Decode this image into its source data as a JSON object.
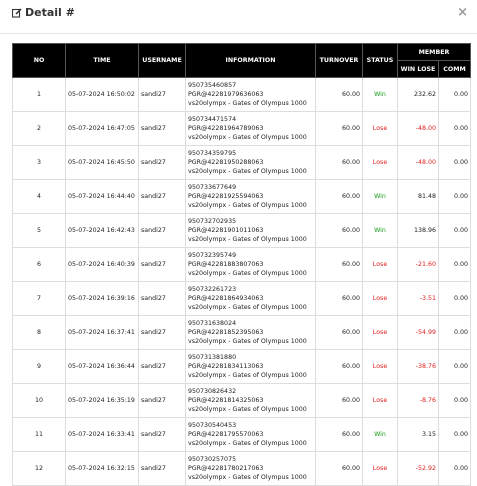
{
  "header": {
    "title": "Detail #",
    "close": "×"
  },
  "table": {
    "columns": [
      "NO",
      "TIME",
      "USERNAME",
      "INFORMATION",
      "TURNOVER",
      "STATUS"
    ],
    "group": "MEMBER",
    "subcolumns": [
      "WIN LOSE",
      "COMM"
    ],
    "rows": [
      {
        "no": "1",
        "time": "05-07-2024 16:50:02",
        "username": "sandi27",
        "information": [
          "950735460857",
          "PGR@42281979636063",
          "vs20olympx - Gates of Olympus 1000"
        ],
        "turnover": "60.00",
        "status": "Win",
        "win_lose": "232.62",
        "comm": "0.00"
      },
      {
        "no": "2",
        "time": "05-07-2024 16:47:05",
        "username": "sandi27",
        "information": [
          "950734471574",
          "PGR@42281964789063",
          "vs20olympx - Gates of Olympus 1000"
        ],
        "turnover": "60.00",
        "status": "Lose",
        "win_lose": "-48.00",
        "comm": "0.00"
      },
      {
        "no": "3",
        "time": "05-07-2024 16:45:50",
        "username": "sandi27",
        "information": [
          "950734359795",
          "PGR@42281950288063",
          "vs20olympx - Gates of Olympus 1000"
        ],
        "turnover": "60.00",
        "status": "Lose",
        "win_lose": "-48.00",
        "comm": "0.00"
      },
      {
        "no": "4",
        "time": "05-07-2024 16:44:40",
        "username": "sandi27",
        "information": [
          "950733677649",
          "PGR@42281925594063",
          "vs20olympx - Gates of Olympus 1000"
        ],
        "turnover": "60.00",
        "status": "Win",
        "win_lose": "81.48",
        "comm": "0.00"
      },
      {
        "no": "5",
        "time": "05-07-2024 16:42:43",
        "username": "sandi27",
        "information": [
          "950732702935",
          "PGR@42281901011063",
          "vs20olympx - Gates of Olympus 1000"
        ],
        "turnover": "60.00",
        "status": "Win",
        "win_lose": "138.96",
        "comm": "0.00"
      },
      {
        "no": "6",
        "time": "05-07-2024 16:40:39",
        "username": "sandi27",
        "information": [
          "950732395749",
          "PGR@42281883807063",
          "vs20olympx - Gates of Olympus 1000"
        ],
        "turnover": "60.00",
        "status": "Lose",
        "win_lose": "-21.60",
        "comm": "0.00"
      },
      {
        "no": "7",
        "time": "05-07-2024 16:39:16",
        "username": "sandi27",
        "information": [
          "950732261723",
          "PGR@42281864934063",
          "vs20olympx - Gates of Olympus 1000"
        ],
        "turnover": "60.00",
        "status": "Lose",
        "win_lose": "-3.51",
        "comm": "0.00"
      },
      {
        "no": "8",
        "time": "05-07-2024 16:37:41",
        "username": "sandi27",
        "information": [
          "950731638024",
          "PGR@42281852395063",
          "vs20olympx - Gates of Olympus 1000"
        ],
        "turnover": "60.00",
        "status": "Lose",
        "win_lose": "-54.99",
        "comm": "0.00"
      },
      {
        "no": "9",
        "time": "05-07-2024 16:36:44",
        "username": "sandi27",
        "information": [
          "950731381880",
          "PGR@42281834113063",
          "vs20olympx - Gates of Olympus 1000"
        ],
        "turnover": "60.00",
        "status": "Lose",
        "win_lose": "-38.76",
        "comm": "0.00"
      },
      {
        "no": "10",
        "time": "05-07-2024 16:35:19",
        "username": "sandi27",
        "information": [
          "950730826432",
          "PGR@42281814325063",
          "vs20olympx - Gates of Olympus 1000"
        ],
        "turnover": "60.00",
        "status": "Lose",
        "win_lose": "-8.76",
        "comm": "0.00"
      },
      {
        "no": "11",
        "time": "05-07-2024 16:33:41",
        "username": "sandi27",
        "information": [
          "950730540453",
          "PGR@42281795570063",
          "vs20olympx - Gates of Olympus 1000"
        ],
        "turnover": "60.00",
        "status": "Win",
        "win_lose": "3.15",
        "comm": "0.00"
      },
      {
        "no": "12",
        "time": "05-07-2024 16:32:15",
        "username": "sandi27",
        "information": [
          "950730257075",
          "PGR@42281780217063",
          "vs20olympx - Gates of Olympus 1000"
        ],
        "turnover": "60.00",
        "status": "Lose",
        "win_lose": "-52.92",
        "comm": "0.00"
      }
    ]
  }
}
